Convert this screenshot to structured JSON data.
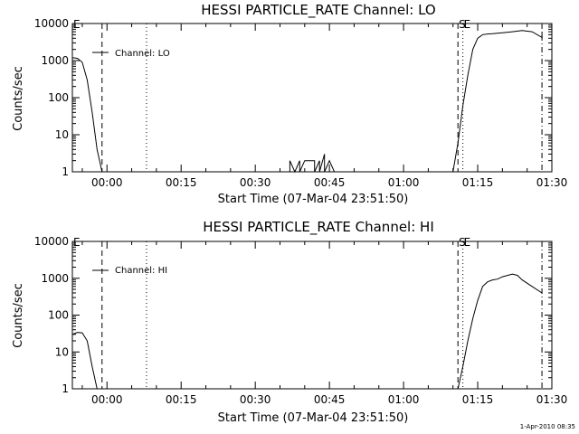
{
  "footer": {
    "timestamp": "1-Apr-2010 08:35"
  },
  "chart_data": [
    {
      "type": "line",
      "title": "HESSI PARTICLE_RATE Channel: LO",
      "xlabel": "Start Time (07-Mar-04 23:51:50)",
      "ylabel": "Counts/sec",
      "y_scale": "log",
      "ylim": [
        1,
        10000
      ],
      "xlim": [
        "23:53",
        "01:30"
      ],
      "y_tick_labels": [
        "1",
        "10",
        "100",
        "1000",
        "10000"
      ],
      "x_tick_labels": [
        "00:00",
        "00:15",
        "00:30",
        "00:45",
        "01:00",
        "01:15",
        "01:30"
      ],
      "legend": {
        "position": "top-left",
        "entries": [
          "Channel: LO"
        ]
      },
      "markers": [
        {
          "label": "E",
          "time": "23:53",
          "style": "solid"
        },
        {
          "label": "",
          "time": "23:59",
          "style": "dashed"
        },
        {
          "label": "",
          "time": "00:08",
          "style": "dotted"
        },
        {
          "label": "S",
          "time": "01:11",
          "style": "dashed"
        },
        {
          "label": "E",
          "time": "01:12",
          "style": "dotted"
        },
        {
          "label": "",
          "time": "01:28",
          "style": "dashdot"
        }
      ],
      "series": [
        {
          "segments": [
            {
              "x": [
                "23:53",
                "23:54",
                "23:55",
                "23:56",
                "23:57",
                "23:58",
                "23:59"
              ],
              "y": [
                1200,
                1150,
                900,
                300,
                40,
                4,
                1
              ]
            },
            {
              "x": [
                "00:37",
                "00:37",
                "00:38",
                "00:39",
                "00:39",
                "00:40",
                "00:42",
                "00:42",
                "00:43",
                "00:43",
                "00:44",
                "00:44",
                "00:45",
                "00:46"
              ],
              "y": [
                1,
                2,
                1,
                2,
                1,
                2,
                2,
                1,
                2,
                1,
                3,
                1,
                2,
                1
              ]
            },
            {
              "x": [
                "01:10",
                "01:11",
                "01:12",
                "01:13",
                "01:14",
                "01:15",
                "01:16",
                "01:17",
                "01:18",
                "01:20",
                "01:22",
                "01:24",
                "01:26",
                "01:28",
                "01:28"
              ],
              "y": [
                1,
                6,
                60,
                400,
                2000,
                4000,
                5000,
                5200,
                5300,
                5600,
                6000,
                6500,
                6000,
                4200,
                6000
              ]
            }
          ]
        }
      ]
    },
    {
      "type": "line",
      "title": "HESSI PARTICLE_RATE Channel: HI",
      "xlabel": "Start Time (07-Mar-04 23:51:50)",
      "ylabel": "Counts/sec",
      "y_scale": "log",
      "ylim": [
        1,
        10000
      ],
      "xlim": [
        "23:53",
        "01:30"
      ],
      "y_tick_labels": [
        "1",
        "10",
        "100",
        "1000",
        "10000"
      ],
      "x_tick_labels": [
        "00:00",
        "00:15",
        "00:30",
        "00:45",
        "01:00",
        "01:15",
        "01:30"
      ],
      "legend": {
        "position": "top-left",
        "entries": [
          "Channel: HI"
        ]
      },
      "markers": [
        {
          "label": "E",
          "time": "23:53",
          "style": "solid"
        },
        {
          "label": "",
          "time": "23:59",
          "style": "dashed"
        },
        {
          "label": "",
          "time": "00:08",
          "style": "dotted"
        },
        {
          "label": "S",
          "time": "01:11",
          "style": "dashed"
        },
        {
          "label": "E",
          "time": "01:12",
          "style": "dotted"
        },
        {
          "label": "",
          "time": "01:28",
          "style": "dashdot"
        }
      ],
      "series": [
        {
          "segments": [
            {
              "x": [
                "23:53",
                "23:54",
                "23:55",
                "23:56",
                "23:57",
                "23:58"
              ],
              "y": [
                30,
                34,
                33,
                20,
                4,
                1
              ]
            },
            {
              "x": [
                "01:11",
                "01:12",
                "01:13",
                "01:14",
                "01:15",
                "01:16",
                "01:17",
                "01:18",
                "01:19",
                "01:20",
                "01:22",
                "01:23",
                "01:24",
                "01:26",
                "01:28"
              ],
              "y": [
                1,
                4,
                20,
                80,
                250,
                600,
                800,
                900,
                950,
                1100,
                1300,
                1200,
                900,
                600,
                400
              ]
            }
          ]
        }
      ]
    }
  ]
}
